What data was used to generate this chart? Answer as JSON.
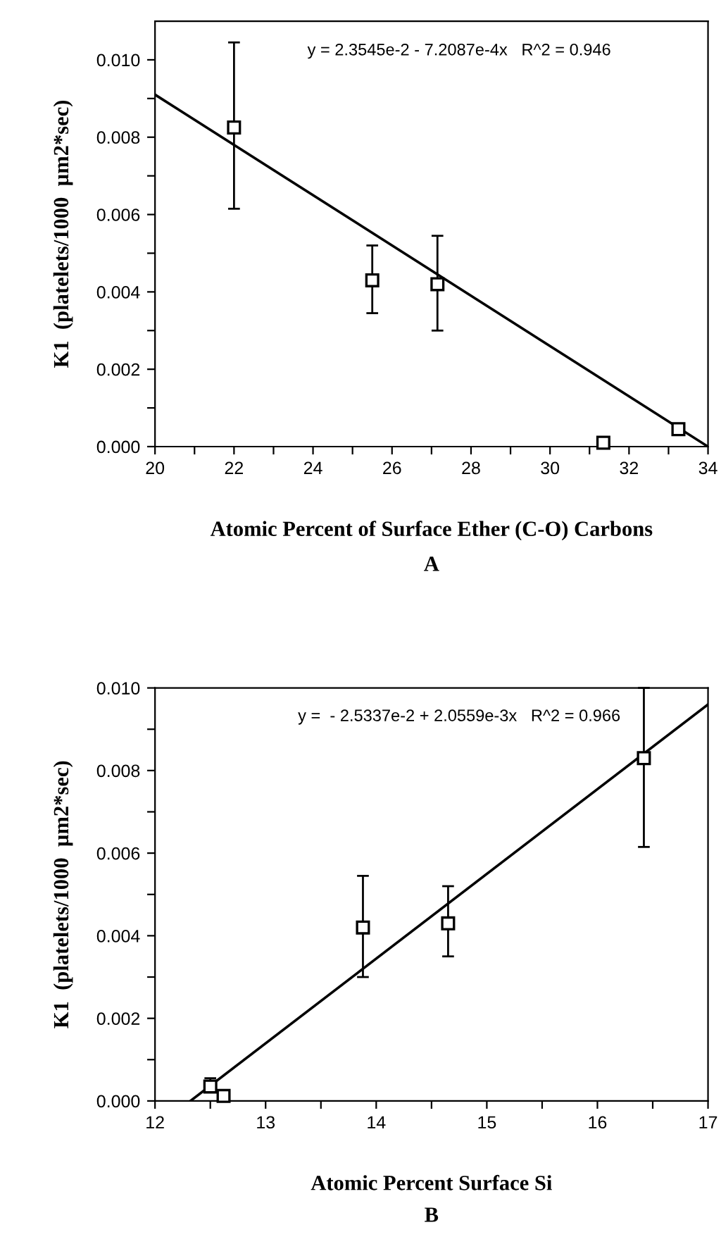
{
  "chart_data": [
    {
      "type": "scatter",
      "xlabel": "Atomic Percent of Surface Ether (C-O) Carbons",
      "ylabel": "K1  (platelets/1000  µm2*sec)",
      "annotations": [
        "y = 2.3545e-2 - 7.2087e-4x   R^2 = 0.946",
        "A"
      ],
      "xlim": [
        20,
        34
      ],
      "ylim": [
        0,
        0.011
      ],
      "xticks": [
        {
          "value": 20,
          "label": "20"
        },
        {
          "value": 21,
          "label": null
        },
        22,
        {
          "value": 23,
          "label": null
        },
        24,
        {
          "value": 25,
          "label": null
        },
        26,
        {
          "value": 27,
          "label": null
        },
        28,
        {
          "value": 29,
          "label": null
        },
        30,
        {
          "value": 31,
          "label": null
        },
        32,
        {
          "value": 33,
          "label": null
        },
        34
      ],
      "yticks": [
        {
          "value": 0,
          "label": "0.000"
        },
        {
          "value": 0.001,
          "label": null
        },
        {
          "value": 0.002,
          "label": "0.002"
        },
        {
          "value": 0.003,
          "label": null
        },
        {
          "value": 0.004,
          "label": "0.004"
        },
        {
          "value": 0.005,
          "label": null
        },
        {
          "value": 0.006,
          "label": "0.006"
        },
        {
          "value": 0.007,
          "label": null
        },
        {
          "value": 0.008,
          "label": "0.008"
        },
        {
          "value": 0.009,
          "label": null
        },
        {
          "value": 0.01,
          "label": "0.010"
        }
      ],
      "grid": false,
      "legend": false,
      "series": [
        {
          "color": "#000000",
          "marker": "square",
          "x": [
            22,
            25.5,
            27.15,
            31.35,
            33.25
          ],
          "values": [
            0.00825,
            0.0043,
            0.0042,
            0.0001,
            0.00045
          ],
          "errors": [
            [
              0.00615,
              0.01045
            ],
            [
              0.00345,
              0.0052
            ],
            [
              0.003,
              0.00545
            ],
            null,
            [
              0.0003,
              0.0005
            ]
          ]
        },
        {
          "type": "line",
          "color": "#000000",
          "marker": "none",
          "line_style": "solid",
          "x": [
            20,
            34
          ],
          "values": [
            0.0091,
            0.0
          ]
        }
      ]
    },
    {
      "type": "scatter",
      "xlabel": "Atomic Percent Surface Si",
      "ylabel": "K1  (platelets/1000  µm2*sec)",
      "annotations": [
        "y =  - 2.5337e-2 + 2.0559e-3x   R^2 = 0.966",
        "B"
      ],
      "xlim": [
        12,
        17
      ],
      "ylim": [
        0,
        0.01
      ],
      "xticks": [
        12,
        {
          "value": 12.5,
          "label": null
        },
        13,
        {
          "value": 13.5,
          "label": null
        },
        14,
        {
          "value": 14.5,
          "label": null
        },
        15,
        {
          "value": 15.5,
          "label": null
        },
        16,
        {
          "value": 16.5,
          "label": null
        },
        17
      ],
      "yticks": [
        {
          "value": 0,
          "label": "0.000"
        },
        {
          "value": 0.001,
          "label": null
        },
        {
          "value": 0.002,
          "label": "0.002"
        },
        {
          "value": 0.003,
          "label": null
        },
        {
          "value": 0.004,
          "label": "0.004"
        },
        {
          "value": 0.005,
          "label": null
        },
        {
          "value": 0.006,
          "label": "0.006"
        },
        {
          "value": 0.007,
          "label": null
        },
        {
          "value": 0.008,
          "label": "0.008"
        },
        {
          "value": 0.009,
          "label": null
        },
        {
          "value": 0.01,
          "label": "0.010"
        }
      ],
      "grid": false,
      "legend": false,
      "series": [
        {
          "color": "#000000",
          "marker": "square",
          "x": [
            12.5,
            12.62,
            13.88,
            14.65,
            16.42
          ],
          "values": [
            0.00035,
            0.00012,
            0.0042,
            0.0043,
            0.0083
          ],
          "errors": [
            [
              0.00025,
              0.00055
            ],
            null,
            [
              0.003,
              0.00545
            ],
            [
              0.0035,
              0.0052
            ],
            [
              0.00615,
              0.01
            ]
          ]
        },
        {
          "type": "line",
          "color": "#000000",
          "marker": "none",
          "line_style": "solid",
          "x": [
            12.32,
            17
          ],
          "values": [
            0.0,
            0.0096
          ]
        }
      ]
    }
  ]
}
